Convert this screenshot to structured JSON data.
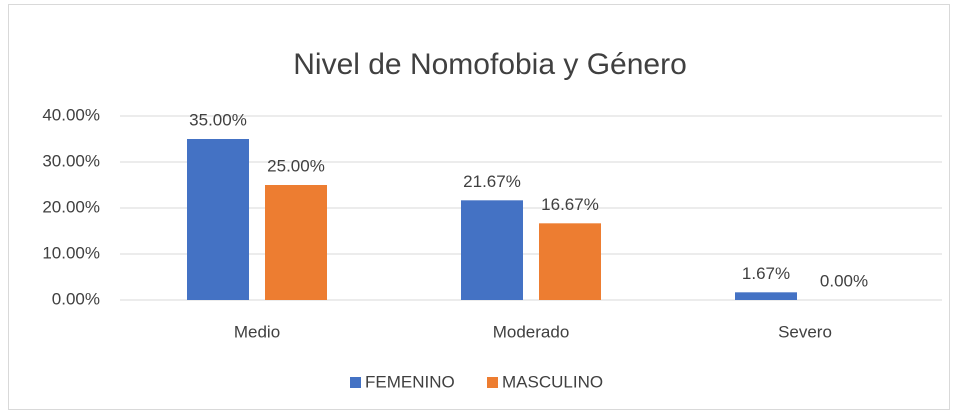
{
  "chart_data": {
    "type": "bar",
    "title": "Nivel de Nomofobia y Género",
    "categories": [
      "Medio",
      "Moderado",
      "Severo"
    ],
    "series": [
      {
        "name": "FEMENINO",
        "color": "#4472c4",
        "values": [
          35,
          21.67,
          1.67
        ],
        "value_labels": [
          "35.00%",
          "21.67%",
          "1.67%"
        ]
      },
      {
        "name": "MASCULINO",
        "color": "#ed7d31",
        "values": [
          25,
          16.67,
          0
        ],
        "value_labels": [
          "25.00%",
          "16.67%",
          "0.00%"
        ]
      }
    ],
    "ylim": [
      0,
      40
    ],
    "yticks": [
      {
        "value": 0,
        "label": "0.00%"
      },
      {
        "value": 10,
        "label": "10.00%"
      },
      {
        "value": 20,
        "label": "20.00%"
      },
      {
        "value": 30,
        "label": "30.00%"
      },
      {
        "value": 40,
        "label": "40.00%"
      }
    ],
    "grid": true,
    "legend": "bottom"
  }
}
